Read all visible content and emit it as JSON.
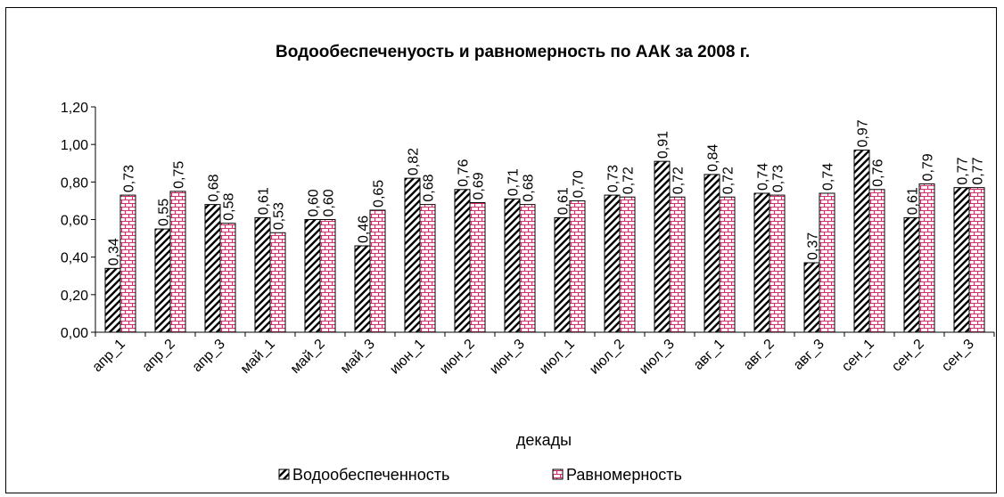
{
  "chart_data": {
    "type": "bar",
    "title": "Водообеспеченуость и равномерность по ААК за 2008 г.",
    "x_label": "декады",
    "categories": [
      "апр_1",
      "апр_2",
      "апр_3",
      "май_1",
      "май_2",
      "май_3",
      "июн_1",
      "июн_2",
      "июн_3",
      "июл_1",
      "июл_2",
      "июл_3",
      "авг_1",
      "авг_2",
      "авг_3",
      "сен_1",
      "сен_2",
      "сен_3"
    ],
    "series": [
      {
        "name": "Водообеспеченность",
        "color": "#000000",
        "values": [
          0.34,
          0.55,
          0.68,
          0.61,
          0.6,
          0.46,
          0.82,
          0.76,
          0.71,
          0.61,
          0.73,
          0.91,
          0.84,
          0.74,
          0.37,
          0.97,
          0.61,
          0.77
        ],
        "value_labels": [
          "0,34",
          "0,55",
          "0,68",
          "0,61",
          "0,60",
          "0,46",
          "0,82",
          "0,76",
          "0,71",
          "0,61",
          "0,73",
          "0,91",
          "0,84",
          "0,74",
          "0,37",
          "0,97",
          "0,61",
          "0,77"
        ]
      },
      {
        "name": "Равномерность",
        "color": "#cc3366",
        "values": [
          0.73,
          0.75,
          0.58,
          0.53,
          0.6,
          0.65,
          0.68,
          0.69,
          0.68,
          0.7,
          0.72,
          0.72,
          0.72,
          0.73,
          0.74,
          0.76,
          0.79,
          0.77
        ],
        "value_labels": [
          "0,73",
          "0,75",
          "0,58",
          "0,53",
          "0,60",
          "0,65",
          "0,68",
          "0,69",
          "0,68",
          "0,70",
          "0,72",
          "0,72",
          "0,72",
          "0,73",
          "0,74",
          "0,76",
          "0,79",
          "0,77"
        ]
      }
    ],
    "ylim": [
      0,
      1.2
    ],
    "yticks": [
      {
        "value": 0,
        "label": "0,00"
      },
      {
        "value": 0.2,
        "label": "0,20"
      },
      {
        "value": 0.4,
        "label": "0,40"
      },
      {
        "value": 0.6,
        "label": "0,60"
      },
      {
        "value": 0.8,
        "label": "0,80"
      },
      {
        "value": 1.0,
        "label": "1,00"
      },
      {
        "value": 1.2,
        "label": "1,20"
      }
    ],
    "legend": "bottom"
  }
}
